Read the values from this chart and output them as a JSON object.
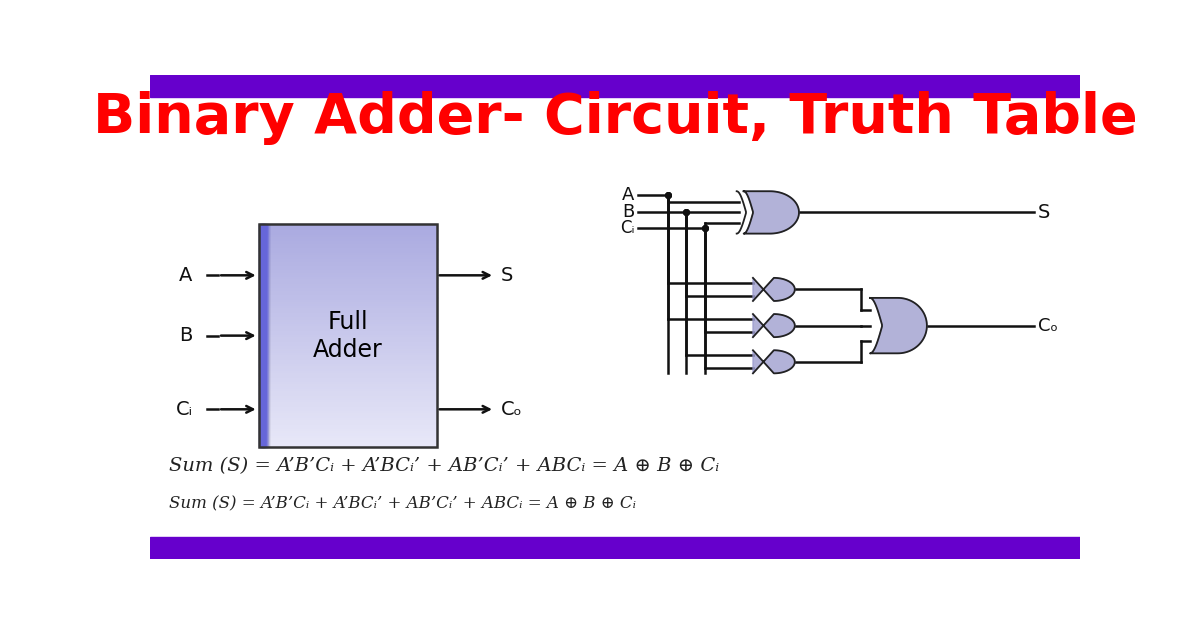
{
  "title": "Binary Adder- Circuit, Truth Table",
  "title_color": "#FF0000",
  "title_fontsize": 40,
  "bg_color": "#FFFFFF",
  "border_color": "#6600CC",
  "formula1": "Sum (S) = A’B’Cᵢ + A’BCᵢ’ + AB’Cᵢ’ + ABCᵢ = A ⊕ B ⊕ Cᵢ",
  "formula2": "Sum (S) = A’B’Cᵢ + A’BCᵢ’ + AB’Cᵢ’ + ABCᵢ = A ⊕ B ⊕ Cᵢ",
  "gate_fill": "#9999CC",
  "gate_edge": "#222222",
  "line_color": "#111111",
  "label_color": "#111111",
  "box_edge_color": "#333333"
}
